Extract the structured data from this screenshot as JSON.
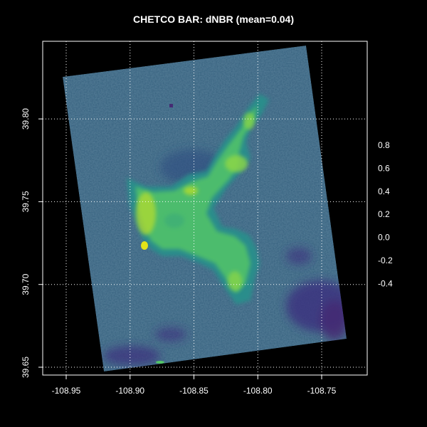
{
  "title": "CHETCO BAR: dNBR (mean=0.04)",
  "colors": {
    "background": "#000000",
    "frame": "#ffffff",
    "grid": "#ffffff",
    "scene": "#35607f",
    "burn_low": "#2a8d8b",
    "burn_mid": "#53c568",
    "burn_high": "#b4dc2c",
    "burn_peak": "#e2e418",
    "regrowth": "#3b2f7e",
    "regrowth_deep": "#452b73"
  },
  "chart_data": {
    "type": "heatmap",
    "x_axis": {
      "ticks": [
        -108.95,
        -108.9,
        -108.85,
        -108.8,
        -108.75
      ],
      "tick_labels": [
        "-108.95",
        "-108.90",
        "-108.85",
        "-108.80",
        "-108.75"
      ]
    },
    "y_axis": {
      "ticks": [
        39.65,
        39.7,
        39.75,
        39.8
      ],
      "tick_labels": [
        "39.65",
        "39.70",
        "39.75",
        "39.80"
      ]
    },
    "grid": true,
    "colorbar": {
      "tick_labels": [
        "0.8",
        "0.6",
        "0.4",
        "0.2",
        "0.0",
        "-0.2",
        "-0.4"
      ]
    }
  }
}
